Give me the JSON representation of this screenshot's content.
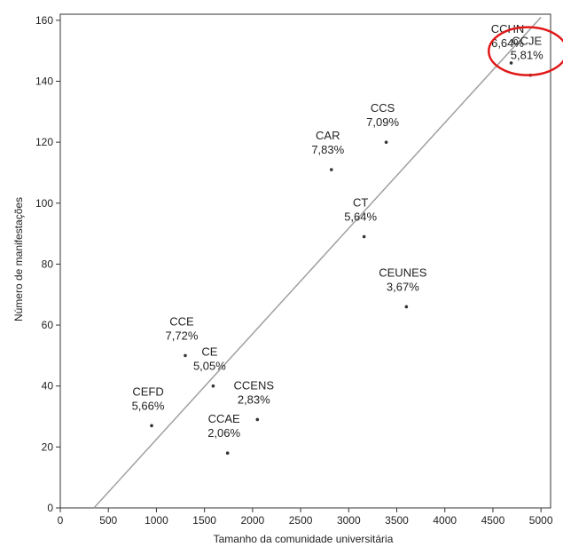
{
  "chart_data": {
    "type": "scatter",
    "title": "",
    "xlabel": "Tamanho da comunidade universitária",
    "ylabel": "Número de manifestações",
    "xlim": [
      0,
      5100
    ],
    "ylim": [
      0,
      162
    ],
    "xticks": [
      0,
      500,
      1000,
      1500,
      2000,
      2500,
      3000,
      3500,
      4000,
      4500,
      5000
    ],
    "yticks": [
      0,
      20,
      40,
      60,
      80,
      100,
      120,
      140,
      160
    ],
    "grid": false,
    "legend": "none",
    "points": [
      {
        "name": "CCHN",
        "value_label": "6,64%",
        "x": 4690,
        "y": 146
      },
      {
        "name": "CCJE",
        "value_label": "5,81%",
        "x": 4890,
        "y": 142,
        "highlighted": true
      },
      {
        "name": "CCS",
        "value_label": "7,09%",
        "x": 3390,
        "y": 120
      },
      {
        "name": "CAR",
        "value_label": "7,83%",
        "x": 2820,
        "y": 111
      },
      {
        "name": "CT",
        "value_label": "5,64%",
        "x": 3160,
        "y": 89
      },
      {
        "name": "CEUNES",
        "value_label": "3,67%",
        "x": 3600,
        "y": 66
      },
      {
        "name": "CCE",
        "value_label": "7,72%",
        "x": 1300,
        "y": 50
      },
      {
        "name": "CE",
        "value_label": "5,05%",
        "x": 1590,
        "y": 40
      },
      {
        "name": "CCENS",
        "value_label": "2,83%",
        "x": 2050,
        "y": 29
      },
      {
        "name": "CEFD",
        "value_label": "5,66%",
        "x": 950,
        "y": 27
      },
      {
        "name": "CCAE",
        "value_label": "2,06%",
        "x": 1740,
        "y": 18
      }
    ],
    "trendline": {
      "x": [
        350,
        5000
      ],
      "y": [
        0,
        161
      ]
    },
    "colors": {
      "axis": "#333333",
      "trend": "#a0a0a0",
      "point": "#333333",
      "highlight": "#e01818"
    }
  }
}
